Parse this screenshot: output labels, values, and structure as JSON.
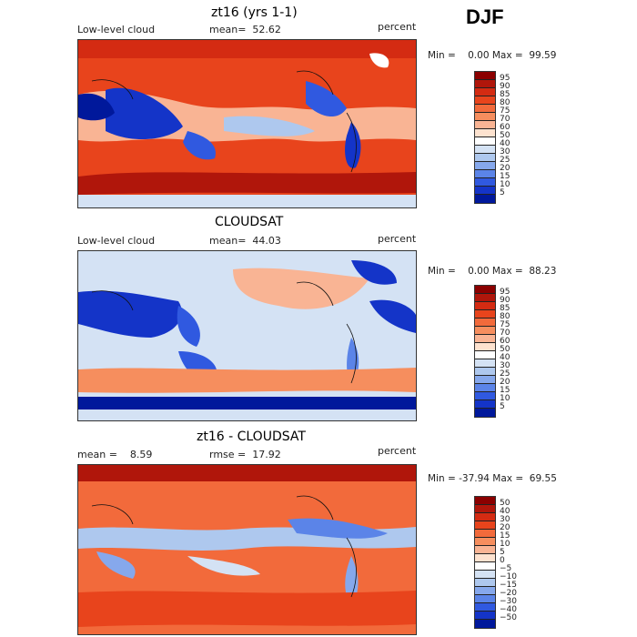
{
  "season": "DJF",
  "panels": [
    {
      "title": "zt16 (yrs 1-1)",
      "left_label": "Low-level cloud",
      "mid_label": "mean=  52.62",
      "right_label": "percent",
      "minmax": "Min =    0.00 Max =  99.59",
      "colorbar_ticks": [
        "95",
        "90",
        "85",
        "80",
        "75",
        "70",
        "60",
        "50",
        "40",
        "30",
        "25",
        "20",
        "15",
        "10",
        "5"
      ],
      "colorbar_colors": [
        "#8b0000",
        "#b0160b",
        "#d42b12",
        "#e8441c",
        "#f26a3b",
        "#f68e5e",
        "#f9b494",
        "#fde2cf",
        "#ffffff",
        "#d4e2f4",
        "#aec8ee",
        "#86a8ec",
        "#5b84e8",
        "#3059e0",
        "#1434c8",
        "#00189b"
      ]
    },
    {
      "title": "CLOUDSAT",
      "left_label": "Low-level cloud",
      "mid_label": "mean=  44.03",
      "right_label": "percent",
      "minmax": "Min =    0.00 Max =  88.23",
      "colorbar_ticks": [
        "95",
        "90",
        "85",
        "80",
        "75",
        "70",
        "60",
        "50",
        "40",
        "30",
        "25",
        "20",
        "15",
        "10",
        "5"
      ],
      "colorbar_colors": [
        "#8b0000",
        "#b0160b",
        "#d42b12",
        "#e8441c",
        "#f26a3b",
        "#f68e5e",
        "#f9b494",
        "#fde2cf",
        "#ffffff",
        "#d4e2f4",
        "#aec8ee",
        "#86a8ec",
        "#5b84e8",
        "#3059e0",
        "#1434c8",
        "#00189b"
      ]
    },
    {
      "title": "zt16 - CLOUDSAT",
      "left_label": "mean =    8.59",
      "mid_label": "rmse =  17.92",
      "right_label": "percent",
      "minmax": "Min = -37.94 Max =  69.55",
      "colorbar_ticks": [
        "50",
        "40",
        "30",
        "20",
        "15",
        "10",
        "5",
        "0",
        "−5",
        "−10",
        "−15",
        "−20",
        "−30",
        "−40",
        "−50"
      ],
      "colorbar_colors": [
        "#8b0000",
        "#b0160b",
        "#d42b12",
        "#e8441c",
        "#f26a3b",
        "#f68e5e",
        "#f9b494",
        "#fde2cf",
        "#ffffff",
        "#d4e2f4",
        "#aec8ee",
        "#86a8ec",
        "#5b84e8",
        "#3059e0",
        "#1434c8",
        "#00189b"
      ]
    }
  ]
}
